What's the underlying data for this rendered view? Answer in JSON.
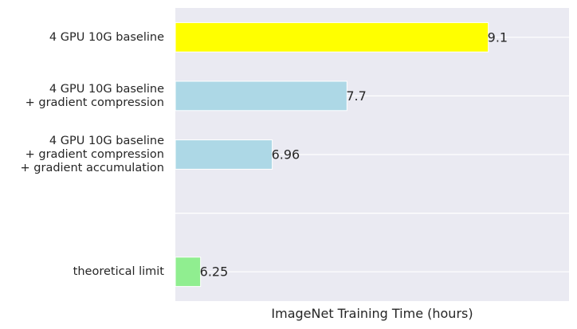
{
  "chart_data": {
    "type": "bar",
    "orientation": "horizontal",
    "categories": [
      [
        "4 GPU 10G baseline"
      ],
      [
        "4 GPU 10G baseline",
        "+ gradient compression"
      ],
      [
        "4 GPU 10G baseline",
        "+ gradient compression",
        "+ gradient accumulation"
      ],
      [
        ""
      ],
      [
        "theoretical limit"
      ]
    ],
    "values": [
      9.1,
      7.7,
      6.96,
      null,
      6.25
    ],
    "value_labels": [
      "9.1",
      "7.7",
      "6.96",
      "",
      "6.25"
    ],
    "bar_colors": [
      "#ffff00",
      "#add8e6",
      "#add8e6",
      "#add8e6",
      "#90ee90"
    ],
    "xlabel": "ImageNet Training Time (hours)",
    "ylabel": "",
    "xlim": [
      6.0,
      9.9
    ],
    "show_xticks": false,
    "grid": true,
    "style": {
      "plot_background": "#eaeaf2",
      "grid_color": "#ffffff",
      "text_color": "#262626",
      "bar_edge": "#ffffff"
    }
  }
}
